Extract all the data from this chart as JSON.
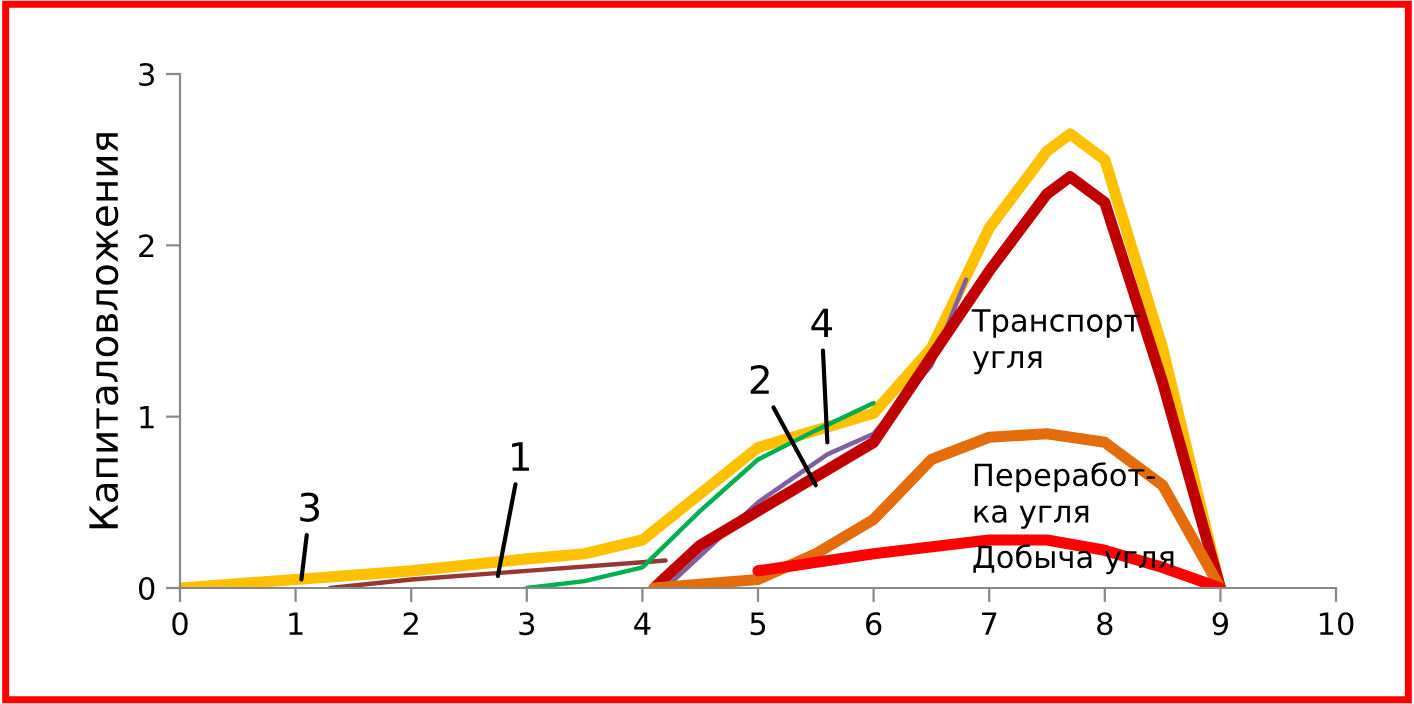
{
  "chart_data": {
    "type": "line",
    "ylabel": "Капиталовложения",
    "xlim": [
      0,
      10
    ],
    "xticks": [
      0,
      1,
      2,
      3,
      4,
      5,
      6,
      7,
      8,
      9,
      10
    ],
    "ylim": [
      0,
      3
    ],
    "yticks": [
      0,
      1,
      2,
      3
    ],
    "grid": false,
    "legend": false,
    "marker": "none",
    "line_style": "solid",
    "series": [
      {
        "color": "#ffc000",
        "x": [
          0,
          1,
          2,
          3,
          3.5,
          4,
          4.5,
          5,
          5.5,
          6,
          6.5,
          7,
          7.5,
          7.7,
          8,
          8.5,
          9
        ],
        "values": [
          0,
          0.05,
          0.1,
          0.17,
          0.2,
          0.28,
          0.55,
          0.82,
          0.92,
          1.02,
          1.4,
          2.1,
          2.55,
          2.65,
          2.5,
          1.4,
          0
        ]
      },
      {
        "color": "#953735",
        "x": [
          1.3,
          2,
          3,
          4,
          4.2
        ],
        "values": [
          0,
          0.05,
          0.1,
          0.15,
          0.16
        ]
      },
      {
        "color": "#00b050",
        "x": [
          3,
          3.5,
          4,
          4.5,
          5,
          5.5,
          6
        ],
        "values": [
          0,
          0.04,
          0.12,
          0.45,
          0.75,
          0.92,
          1.08
        ]
      },
      {
        "color": "#7f5f9f",
        "x": [
          4.2,
          5,
          5.6,
          6,
          6.5,
          6.8
        ],
        "values": [
          0,
          0.5,
          0.78,
          0.9,
          1.3,
          1.8
        ]
      },
      {
        "name": "Транспорт\nугля",
        "color": "#c00000",
        "x": [
          4.1,
          4.5,
          5,
          5.5,
          6,
          6.5,
          7,
          7.5,
          7.7,
          8,
          8.5,
          9
        ],
        "values": [
          0,
          0.25,
          0.45,
          0.65,
          0.85,
          1.35,
          1.85,
          2.3,
          2.4,
          2.25,
          1.2,
          0
        ]
      },
      {
        "name": "Переработ-\nка угля",
        "color": "#e46c0a",
        "x": [
          4.1,
          5,
          5.5,
          6,
          6.5,
          7,
          7.5,
          8,
          8.5,
          9
        ],
        "values": [
          0,
          0.05,
          0.2,
          0.4,
          0.75,
          0.88,
          0.9,
          0.85,
          0.6,
          0
        ]
      },
      {
        "name": "Добыча угля",
        "color": "#ff0000",
        "x": [
          5,
          6,
          7,
          7.5,
          8,
          8.5,
          9
        ],
        "values": [
          0.1,
          0.2,
          0.28,
          0.28,
          0.22,
          0.12,
          0
        ]
      }
    ],
    "annotations": [
      {
        "text": "3",
        "x": 1.05,
        "y": 0.05
      },
      {
        "text": "1",
        "x": 2.75,
        "y": 0.07
      },
      {
        "text": "2",
        "x": 5.5,
        "y": 0.6
      },
      {
        "text": "4",
        "x": 5.6,
        "y": 0.85
      }
    ]
  }
}
